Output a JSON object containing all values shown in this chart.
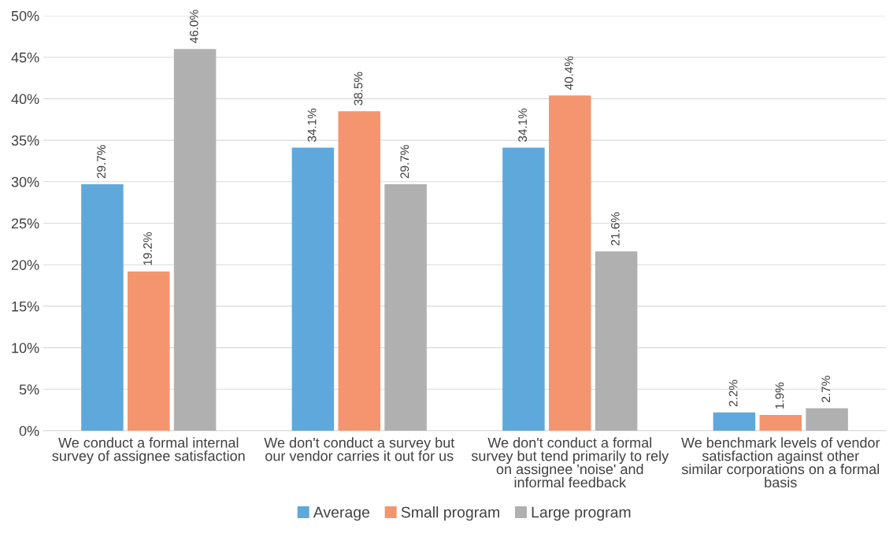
{
  "chart_data": {
    "type": "bar",
    "categories": [
      "We conduct a formal internal survey of assignee satisfaction",
      "We don't conduct a survey but our vendor carries it out for us",
      "We don't conduct a formal survey but tend primarily to rely on assignee 'noise' and informal feedback",
      "We benchmark levels of vendor satisfaction against other similar corporations on a formal basis"
    ],
    "series": [
      {
        "name": "Average",
        "color": "#5fa8dc",
        "values": [
          29.7,
          34.1,
          34.1,
          2.2
        ],
        "value_labels": [
          "29.7%",
          "34.1%",
          "34.1%",
          "2.2%"
        ]
      },
      {
        "name": "Small program",
        "color": "#f4956f",
        "values": [
          19.2,
          38.5,
          40.4,
          1.9
        ],
        "value_labels": [
          "19.2%",
          "38.5%",
          "40.4%",
          "1.9%"
        ]
      },
      {
        "name": "Large program",
        "color": "#b0b0b0",
        "values": [
          46.0,
          29.7,
          21.6,
          2.7
        ],
        "value_labels": [
          "46.0%",
          "29.7%",
          "21.6%",
          "2.7%"
        ]
      }
    ],
    "ylim": [
      0,
      50
    ],
    "yticks": [
      {
        "value": 0,
        "label": "0%"
      },
      {
        "value": 5,
        "label": "5%"
      },
      {
        "value": 10,
        "label": "10%"
      },
      {
        "value": 15,
        "label": "15%"
      },
      {
        "value": 20,
        "label": "20%"
      },
      {
        "value": 25,
        "label": "25%"
      },
      {
        "value": 30,
        "label": "30%"
      },
      {
        "value": 35,
        "label": "35%"
      },
      {
        "value": 40,
        "label": "40%"
      },
      {
        "value": 45,
        "label": "45%"
      },
      {
        "value": 50,
        "label": "50%"
      }
    ],
    "grid": "y",
    "legend": "bottom"
  }
}
